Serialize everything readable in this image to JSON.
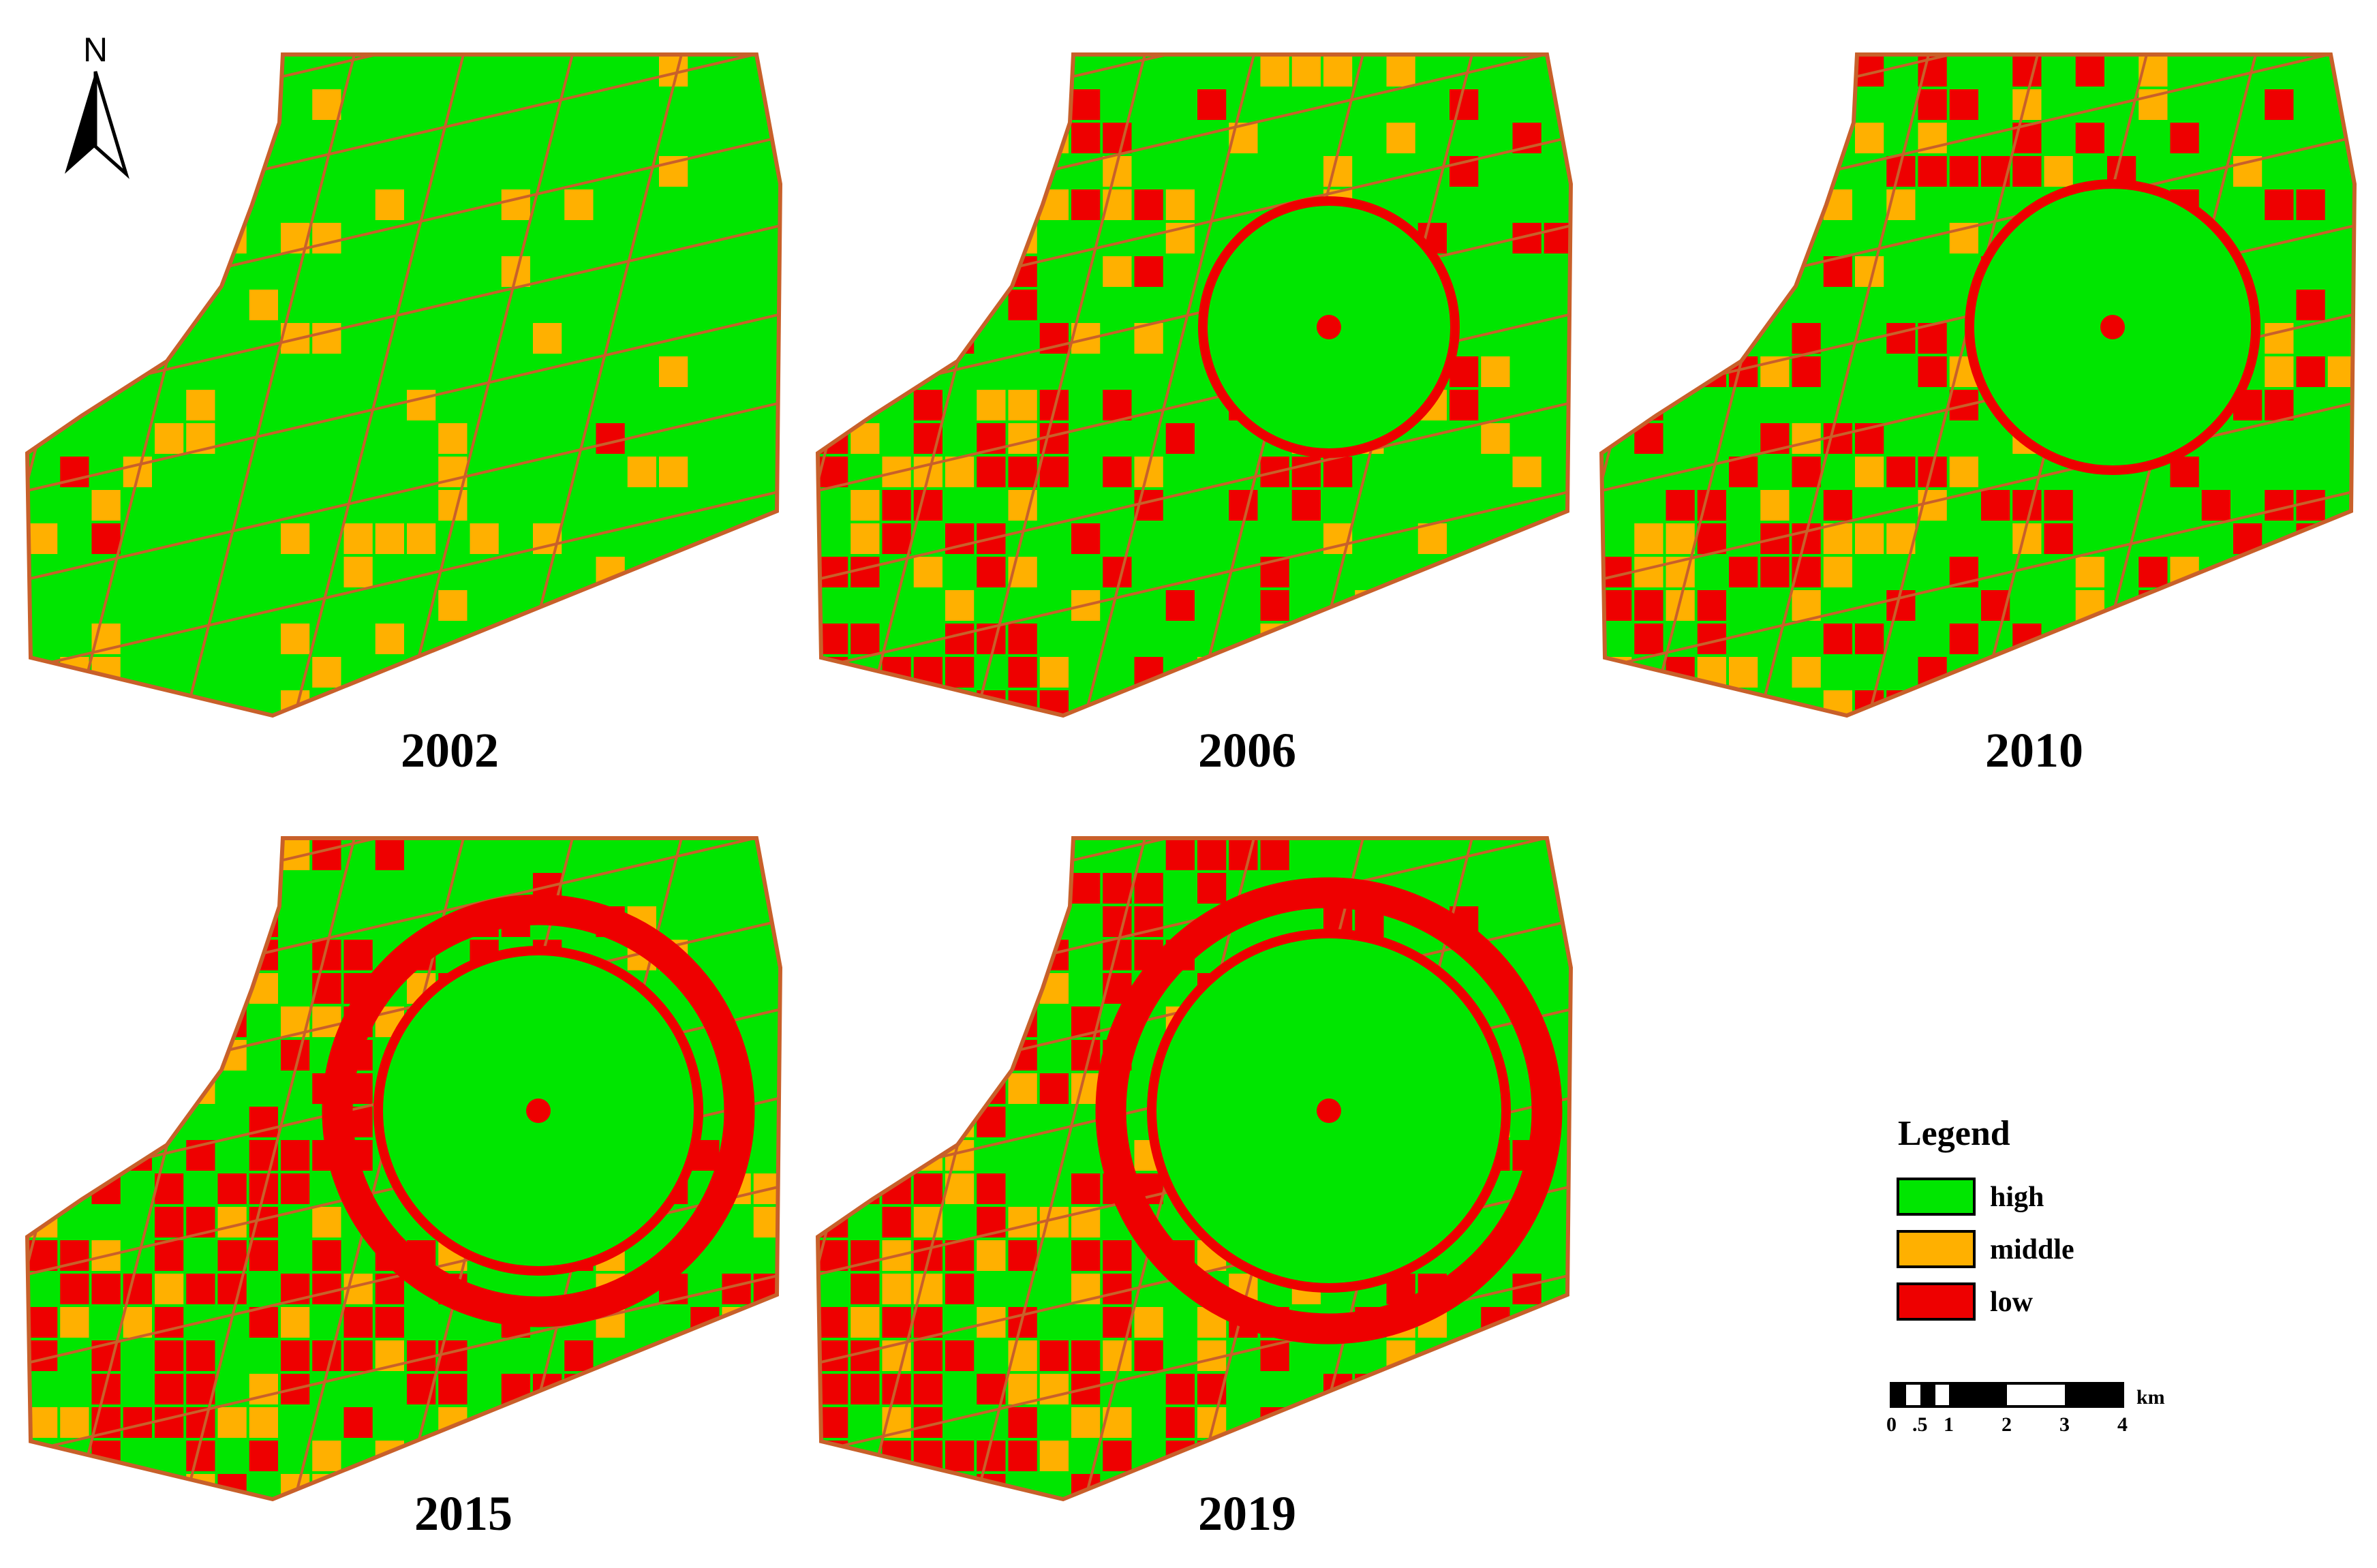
{
  "north_arrow": {
    "label": "N",
    "icon": "north-arrow-icon"
  },
  "colors": {
    "high": "#00e600",
    "middle": "#ffb000",
    "low": "#ee0000",
    "road": "#c8602a"
  },
  "maps": [
    {
      "year": "2002",
      "coverage": {
        "middle": 0.1,
        "low": 0.01
      }
    },
    {
      "year": "2006",
      "coverage": {
        "middle": 0.12,
        "low": 0.2
      }
    },
    {
      "year": "2010",
      "coverage": {
        "middle": 0.11,
        "low": 0.24
      }
    },
    {
      "year": "2015",
      "coverage": {
        "middle": 0.14,
        "low": 0.3
      }
    },
    {
      "year": "2019",
      "coverage": {
        "middle": 0.13,
        "low": 0.34
      }
    }
  ],
  "legend": {
    "title": "Legend",
    "items": [
      {
        "label": "high",
        "color": "#00e600"
      },
      {
        "label": "middle",
        "color": "#ffb000"
      },
      {
        "label": "low",
        "color": "#ee0000"
      }
    ]
  },
  "scale_bar": {
    "unit": "km",
    "ticks": [
      "0",
      ".5",
      "1",
      "2",
      "3",
      "4"
    ]
  }
}
